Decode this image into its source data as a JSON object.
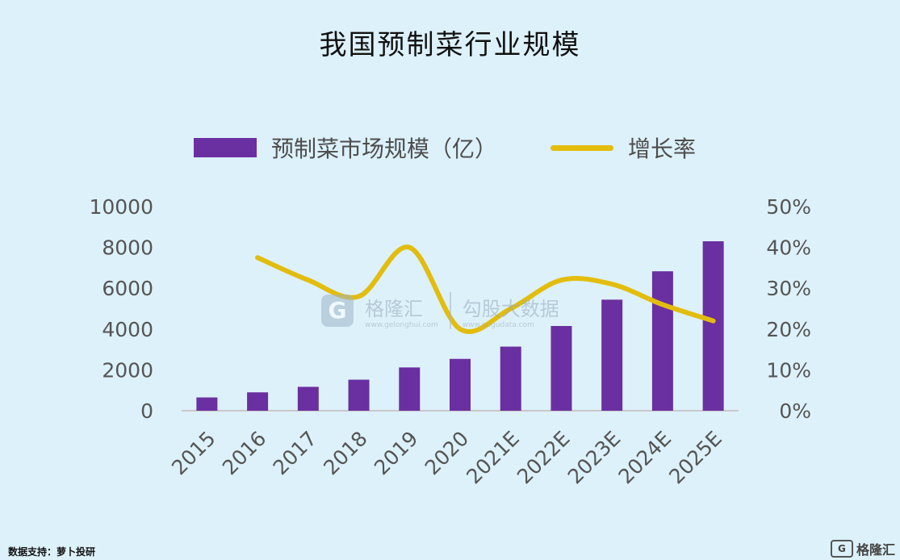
{
  "title": "我国预制菜行业规模",
  "legend": {
    "bar_label": "预制菜市场规模（亿）",
    "line_label": "增长率"
  },
  "watermark": {
    "logo_glyph": "G",
    "brand_a": "格隆汇",
    "brand_a_url": "www.gelonghui.com",
    "brand_b": "勾股大数据",
    "brand_b_url": "www.gogudata.com"
  },
  "footer": "数据支持：萝卜投研",
  "corner_brand": "格隆汇",
  "corner_glyph": "G",
  "colors": {
    "bar": "#6a2fa0",
    "line": "#e3bd0d",
    "axis_text": "#555555",
    "background": "#ddf1fb"
  },
  "chart_data": {
    "type": "bar",
    "categories": [
      "2015",
      "2016",
      "2017",
      "2018",
      "2019",
      "2020",
      "2021E",
      "2022E",
      "2023E",
      "2024E",
      "2025E"
    ],
    "series": [
      {
        "name": "预制菜市场规模（亿）",
        "type": "bar",
        "axis": "left",
        "values": [
          650,
          900,
          1170,
          1520,
          2120,
          2540,
          3140,
          4150,
          5440,
          6830,
          8300
        ]
      },
      {
        "name": "增长率",
        "type": "line",
        "axis": "right",
        "values": [
          null,
          0.375,
          0.32,
          0.28,
          0.4,
          0.2,
          0.25,
          0.32,
          0.31,
          0.26,
          0.22
        ]
      }
    ],
    "y_left": {
      "ylim": [
        0,
        10000
      ],
      "ticks": [
        "0",
        "2000",
        "4000",
        "6000",
        "8000",
        "10000"
      ]
    },
    "y_right": {
      "ylim": [
        0,
        0.5
      ],
      "ticks": [
        "0%",
        "10%",
        "20%",
        "30%",
        "40%",
        "50%"
      ]
    },
    "legend_position": "top",
    "grid": false
  }
}
